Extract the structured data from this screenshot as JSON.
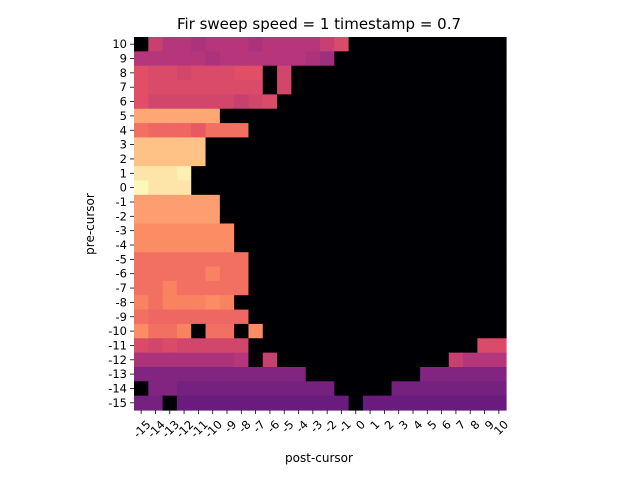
{
  "chart_data": {
    "type": "heatmap",
    "title": "Fir sweep  speed = 1 timestamp = 0.7",
    "xlabel": "post-cursor",
    "ylabel": "pre-cursor",
    "x_tick_labels": [
      "-15",
      "-14",
      "-13",
      "-12",
      "-11",
      "-10",
      "-9",
      "-8",
      "-7",
      "-6",
      "-5",
      "-4",
      "-3",
      "-2",
      "-1",
      "0",
      "1",
      "2",
      "3",
      "4",
      "5",
      "6",
      "7",
      "8",
      "9",
      "10"
    ],
    "y_tick_labels": [
      "10",
      "9",
      "8",
      "7",
      "6",
      "5",
      "4",
      "3",
      "2",
      "1",
      "0",
      "-1",
      "-2",
      "-3",
      "-4",
      "-5",
      "-6",
      "-7",
      "-8",
      "-9",
      "-10",
      "-11",
      "-12",
      "-13",
      "-14",
      "-15"
    ],
    "colormap": "magma",
    "color_range": [
      0,
      1
    ],
    "grid": false,
    "legend": "none",
    "values": [
      [
        0.0,
        0.55,
        0.5,
        0.5,
        0.48,
        0.5,
        0.5,
        0.5,
        0.48,
        0.5,
        0.5,
        0.5,
        0.5,
        0.55,
        0.6,
        0,
        0,
        0,
        0,
        0,
        0,
        0,
        0,
        0,
        0,
        0
      ],
      [
        0.5,
        0.5,
        0.5,
        0.5,
        0.5,
        0.48,
        0.5,
        0.5,
        0.5,
        0.5,
        0.5,
        0.5,
        0.48,
        0.45,
        0,
        0,
        0,
        0,
        0,
        0,
        0,
        0,
        0,
        0,
        0,
        0
      ],
      [
        0.62,
        0.6,
        0.6,
        0.58,
        0.6,
        0.6,
        0.6,
        0.62,
        0.62,
        0,
        0.58,
        0,
        0,
        0,
        0,
        0,
        0,
        0,
        0,
        0,
        0,
        0,
        0,
        0,
        0,
        0
      ],
      [
        0.62,
        0.6,
        0.6,
        0.6,
        0.6,
        0.6,
        0.6,
        0.6,
        0.6,
        0,
        0.58,
        0,
        0,
        0,
        0,
        0,
        0,
        0,
        0,
        0,
        0,
        0,
        0,
        0,
        0,
        0
      ],
      [
        0.62,
        0.58,
        0.58,
        0.58,
        0.58,
        0.58,
        0.58,
        0.55,
        0.58,
        0.6,
        0,
        0,
        0,
        0,
        0,
        0,
        0,
        0,
        0,
        0,
        0,
        0,
        0,
        0,
        0,
        0
      ],
      [
        0.82,
        0.82,
        0.82,
        0.82,
        0.82,
        0.82,
        0,
        0,
        0,
        0,
        0,
        0,
        0,
        0,
        0,
        0,
        0,
        0,
        0,
        0,
        0,
        0,
        0,
        0,
        0,
        0
      ],
      [
        0.7,
        0.68,
        0.68,
        0.68,
        0.65,
        0.7,
        0.7,
        0.7,
        0,
        0,
        0,
        0,
        0,
        0,
        0,
        0,
        0,
        0,
        0,
        0,
        0,
        0,
        0,
        0,
        0,
        0
      ],
      [
        0.88,
        0.88,
        0.88,
        0.88,
        0.88,
        0,
        0,
        0,
        0,
        0,
        0,
        0,
        0,
        0,
        0,
        0,
        0,
        0,
        0,
        0,
        0,
        0,
        0,
        0,
        0,
        0
      ],
      [
        0.88,
        0.88,
        0.88,
        0.88,
        0.88,
        0,
        0,
        0,
        0,
        0,
        0,
        0,
        0,
        0,
        0,
        0,
        0,
        0,
        0,
        0,
        0,
        0,
        0,
        0,
        0,
        0
      ],
      [
        0.95,
        0.95,
        0.95,
        0.97,
        0,
        0,
        0,
        0,
        0,
        0,
        0,
        0,
        0,
        0,
        0,
        0,
        0,
        0,
        0,
        0,
        0,
        0,
        0,
        0,
        0,
        0
      ],
      [
        0.99,
        0.95,
        0.95,
        0.95,
        0,
        0,
        0,
        0,
        0,
        0,
        0,
        0,
        0,
        0,
        0,
        0,
        0,
        0,
        0,
        0,
        0,
        0,
        0,
        0,
        0,
        0
      ],
      [
        0.8,
        0.8,
        0.8,
        0.8,
        0.8,
        0.8,
        0,
        0,
        0,
        0,
        0,
        0,
        0,
        0,
        0,
        0,
        0,
        0,
        0,
        0,
        0,
        0,
        0,
        0,
        0,
        0
      ],
      [
        0.8,
        0.8,
        0.8,
        0.8,
        0.8,
        0.8,
        0,
        0,
        0,
        0,
        0,
        0,
        0,
        0,
        0,
        0,
        0,
        0,
        0,
        0,
        0,
        0,
        0,
        0,
        0,
        0
      ],
      [
        0.76,
        0.76,
        0.76,
        0.76,
        0.76,
        0.76,
        0.76,
        0,
        0,
        0,
        0,
        0,
        0,
        0,
        0,
        0,
        0,
        0,
        0,
        0,
        0,
        0,
        0,
        0,
        0,
        0
      ],
      [
        0.76,
        0.76,
        0.76,
        0.76,
        0.76,
        0.76,
        0.76,
        0,
        0,
        0,
        0,
        0,
        0,
        0,
        0,
        0,
        0,
        0,
        0,
        0,
        0,
        0,
        0,
        0,
        0,
        0
      ],
      [
        0.7,
        0.7,
        0.7,
        0.7,
        0.7,
        0.7,
        0.7,
        0.7,
        0,
        0,
        0,
        0,
        0,
        0,
        0,
        0,
        0,
        0,
        0,
        0,
        0,
        0,
        0,
        0,
        0,
        0
      ],
      [
        0.7,
        0.7,
        0.7,
        0.7,
        0.7,
        0.74,
        0.7,
        0.7,
        0,
        0,
        0,
        0,
        0,
        0,
        0,
        0,
        0,
        0,
        0,
        0,
        0,
        0,
        0,
        0,
        0,
        0
      ],
      [
        0.7,
        0.7,
        0.74,
        0.7,
        0.7,
        0.7,
        0.7,
        0.7,
        0,
        0,
        0,
        0,
        0,
        0,
        0,
        0,
        0,
        0,
        0,
        0,
        0,
        0,
        0,
        0,
        0,
        0
      ],
      [
        0.74,
        0.7,
        0.74,
        0.74,
        0.74,
        0.76,
        0.74,
        0,
        0,
        0,
        0,
        0,
        0,
        0,
        0,
        0,
        0,
        0,
        0,
        0,
        0,
        0,
        0,
        0,
        0,
        0
      ],
      [
        0.7,
        0.68,
        0.68,
        0.68,
        0.68,
        0.68,
        0.68,
        0.68,
        0,
        0,
        0,
        0,
        0,
        0,
        0,
        0,
        0,
        0,
        0,
        0,
        0,
        0,
        0,
        0,
        0,
        0
      ],
      [
        0.76,
        0.7,
        0.7,
        0.74,
        0,
        0.7,
        0.7,
        0,
        0.76,
        0,
        0,
        0,
        0,
        0,
        0,
        0,
        0,
        0,
        0,
        0,
        0,
        0,
        0,
        0,
        0,
        0
      ],
      [
        0.6,
        0.58,
        0.6,
        0.58,
        0.58,
        0.58,
        0.58,
        0.58,
        0,
        0,
        0,
        0,
        0,
        0,
        0,
        0,
        0,
        0,
        0,
        0,
        0,
        0,
        0,
        0,
        0.6,
        0.6
      ],
      [
        0.48,
        0.48,
        0.48,
        0.48,
        0.48,
        0.48,
        0.48,
        0.5,
        0,
        0.55,
        0,
        0,
        0,
        0,
        0,
        0,
        0,
        0,
        0,
        0,
        0,
        0,
        0.55,
        0.5,
        0.5,
        0.5
      ],
      [
        0.38,
        0.38,
        0.38,
        0.38,
        0.38,
        0.38,
        0.38,
        0.38,
        0.38,
        0.38,
        0.38,
        0.38,
        0,
        0,
        0,
        0,
        0,
        0,
        0,
        0,
        0.38,
        0.38,
        0.38,
        0.38,
        0.38,
        0.38
      ],
      [
        0.0,
        0.38,
        0.38,
        0.35,
        0.35,
        0.35,
        0.35,
        0.35,
        0.35,
        0.35,
        0.35,
        0.35,
        0.35,
        0.35,
        0,
        0,
        0,
        0,
        0.35,
        0.35,
        0.35,
        0.35,
        0.35,
        0.35,
        0.35,
        0.35
      ],
      [
        0.35,
        0.35,
        0.0,
        0.32,
        0.32,
        0.32,
        0.32,
        0.32,
        0.32,
        0.32,
        0.32,
        0.32,
        0.32,
        0.32,
        0.32,
        0,
        0.32,
        0.32,
        0.32,
        0.32,
        0.32,
        0.32,
        0.32,
        0.32,
        0.32,
        0.32
      ]
    ]
  }
}
